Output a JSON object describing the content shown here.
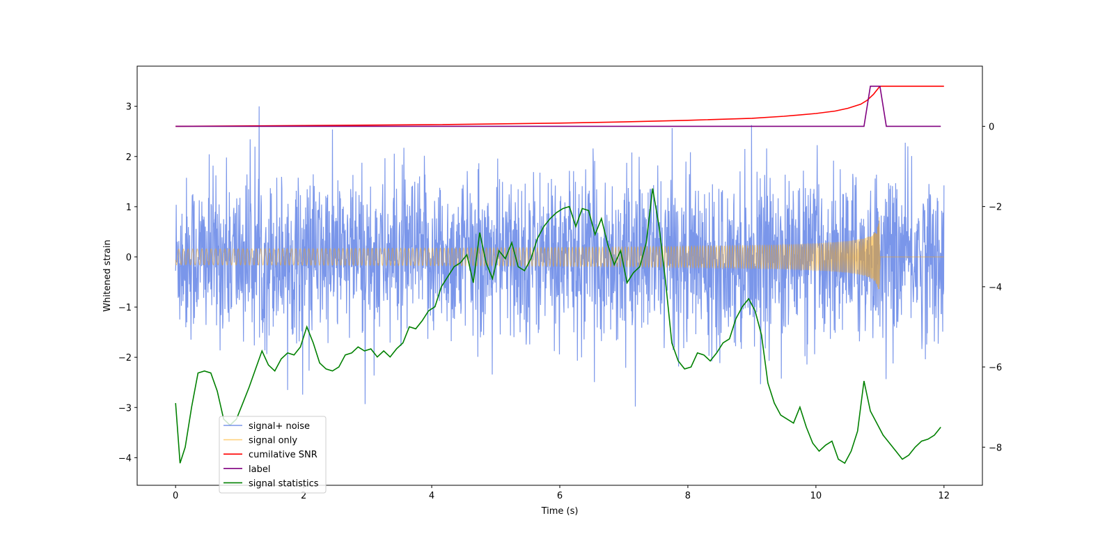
{
  "chart_data": {
    "type": "line",
    "title": "",
    "xlabel": "Time (s)",
    "ylabel": "Whitened strain",
    "y2label": "",
    "xlim": [
      -0.6,
      12.6
    ],
    "ylim": [
      -4.55,
      3.8
    ],
    "y2lim": [
      -8.95,
      1.5
    ],
    "x_ticks": [
      0,
      2,
      4,
      6,
      8,
      10,
      12
    ],
    "y_ticks": [
      -4,
      -3,
      -2,
      -1,
      0,
      1,
      2,
      3
    ],
    "y2_ticks": [
      -8,
      -6,
      -4,
      -2,
      0
    ],
    "grid": false,
    "legend_position": "lower-left",
    "series": [
      {
        "name": "signal+ noise",
        "axis": "left",
        "color": "#4169e1",
        "opacity": 0.7,
        "description": "noisy whitened strain, roughly within -2.6..2.6 with spikes to about 3.4 and -4.2",
        "x_range": [
          0,
          12
        ],
        "amplitude": 0.8
      },
      {
        "name": "signal only",
        "axis": "left",
        "color": "#ffa500",
        "opacity": 0.5,
        "x_range": [
          0,
          11
        ],
        "chirp_end_amplitude": 2.0
      },
      {
        "name": "cumilative SNR",
        "axis": "right",
        "color": "#ff0000",
        "x": [
          0,
          2,
          4,
          6,
          7,
          8,
          9,
          9.5,
          10,
          10.3,
          10.5,
          10.7,
          10.8,
          10.9,
          11.0,
          12.0
        ],
        "y": [
          0,
          0.02,
          0.04,
          0.08,
          0.11,
          0.15,
          0.2,
          0.25,
          0.32,
          0.38,
          0.45,
          0.55,
          0.65,
          0.8,
          1.0,
          1.0
        ]
      },
      {
        "name": "label",
        "axis": "right",
        "color": "#800080",
        "x": [
          0,
          10.75,
          10.85,
          11.0,
          11.1,
          11.95
        ],
        "y": [
          0,
          0,
          1,
          1,
          0,
          0
        ]
      },
      {
        "name": "signal statistics",
        "axis": "right",
        "color": "#008000",
        "x": [
          0.0,
          0.07,
          0.15,
          0.25,
          0.35,
          0.45,
          0.55,
          0.65,
          0.75,
          0.85,
          0.95,
          1.05,
          1.15,
          1.25,
          1.35,
          1.45,
          1.55,
          1.65,
          1.75,
          1.85,
          1.95,
          2.05,
          2.15,
          2.25,
          2.35,
          2.45,
          2.55,
          2.65,
          2.75,
          2.85,
          2.95,
          3.05,
          3.15,
          3.25,
          3.35,
          3.45,
          3.55,
          3.65,
          3.75,
          3.85,
          3.95,
          4.05,
          4.15,
          4.25,
          4.35,
          4.45,
          4.55,
          4.65,
          4.75,
          4.85,
          4.95,
          5.05,
          5.15,
          5.25,
          5.35,
          5.45,
          5.55,
          5.65,
          5.75,
          5.85,
          5.95,
          6.05,
          6.15,
          6.25,
          6.35,
          6.45,
          6.55,
          6.65,
          6.75,
          6.85,
          6.95,
          7.05,
          7.15,
          7.25,
          7.35,
          7.45,
          7.55,
          7.65,
          7.75,
          7.85,
          7.95,
          8.05,
          8.15,
          8.25,
          8.35,
          8.45,
          8.55,
          8.65,
          8.75,
          8.85,
          8.95,
          9.05,
          9.15,
          9.25,
          9.35,
          9.45,
          9.55,
          9.65,
          9.75,
          9.85,
          9.95,
          10.05,
          10.15,
          10.25,
          10.35,
          10.45,
          10.55,
          10.65,
          10.75,
          10.85,
          10.95,
          11.05,
          11.15,
          11.25,
          11.35,
          11.45,
          11.55,
          11.65,
          11.75,
          11.85,
          11.95
        ],
        "y": [
          -6.9,
          -8.4,
          -8.0,
          -7.0,
          -6.15,
          -6.1,
          -6.15,
          -6.6,
          -7.3,
          -7.45,
          -7.3,
          -6.9,
          -6.5,
          -6.05,
          -5.6,
          -5.95,
          -6.1,
          -5.8,
          -5.65,
          -5.7,
          -5.5,
          -5.0,
          -5.4,
          -5.9,
          -6.05,
          -6.1,
          -6.0,
          -5.7,
          -5.65,
          -5.5,
          -5.6,
          -5.55,
          -5.75,
          -5.6,
          -5.75,
          -5.55,
          -5.4,
          -5.0,
          -5.05,
          -4.85,
          -4.6,
          -4.5,
          -4.0,
          -3.75,
          -3.5,
          -3.4,
          -3.2,
          -3.9,
          -2.65,
          -3.4,
          -3.8,
          -3.1,
          -3.3,
          -2.9,
          -3.5,
          -3.6,
          -3.3,
          -2.8,
          -2.5,
          -2.3,
          -2.15,
          -2.05,
          -2.0,
          -2.5,
          -2.05,
          -2.1,
          -2.7,
          -2.3,
          -2.95,
          -3.45,
          -3.1,
          -3.9,
          -3.65,
          -3.5,
          -2.9,
          -1.55,
          -2.5,
          -3.85,
          -5.4,
          -5.85,
          -6.05,
          -6.0,
          -5.65,
          -5.7,
          -5.85,
          -5.65,
          -5.4,
          -5.3,
          -4.8,
          -4.5,
          -4.3,
          -4.6,
          -5.2,
          -6.4,
          -6.9,
          -7.2,
          -7.3,
          -7.4,
          -7.0,
          -7.5,
          -7.9,
          -8.1,
          -7.95,
          -7.85,
          -8.3,
          -8.4,
          -8.1,
          -7.6,
          -6.35,
          -7.1,
          -7.4,
          -7.7,
          -7.9,
          -8.1,
          -8.3,
          -8.2,
          -8.0,
          -7.85,
          -7.8,
          -7.7,
          -7.5
        ]
      }
    ]
  }
}
